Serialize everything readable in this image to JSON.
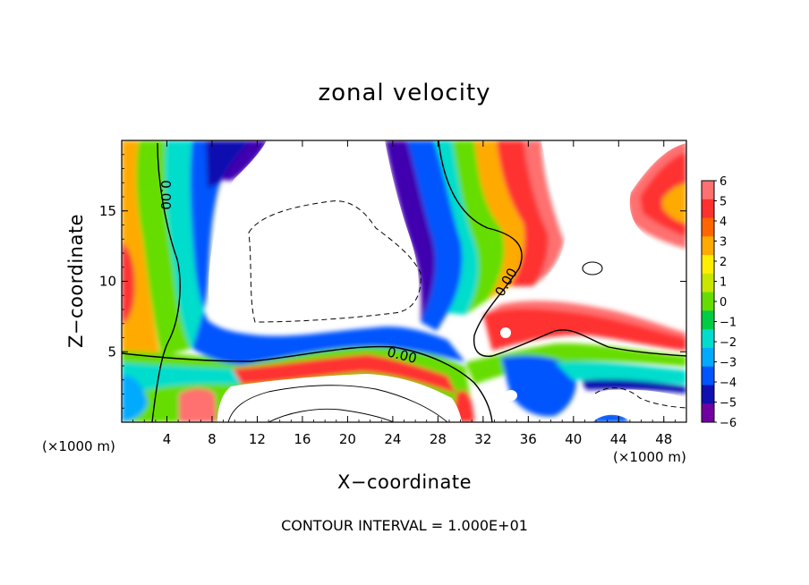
{
  "chart_data": {
    "type": "heatmap",
    "title": "zonal velocity",
    "xlabel": "X−coordinate",
    "ylabel": "Z−coordinate",
    "x_unit": "(×1000 m)",
    "y_unit": "(×1000 m)",
    "xlim": [
      0,
      50
    ],
    "ylim": [
      0,
      20
    ],
    "x_ticks": [
      "4",
      "8",
      "12",
      "16",
      "20",
      "24",
      "28",
      "32",
      "36",
      "40",
      "44",
      "48"
    ],
    "y_ticks": [
      "5",
      "10",
      "15"
    ],
    "colorbar": {
      "labels": [
        "6",
        "5",
        "4",
        "3",
        "2",
        "1",
        "0",
        "−1",
        "−2",
        "−3",
        "−4",
        "−5",
        "−6"
      ],
      "values": [
        6,
        5,
        4,
        3,
        2,
        1,
        0,
        -1,
        -2,
        -3,
        -4,
        -5,
        -6
      ],
      "colors": [
        "#ff7070",
        "#ff3030",
        "#ff6600",
        "#ffaa00",
        "#ffee00",
        "#c8e600",
        "#66dd00",
        "#00cc44",
        "#00ddcc",
        "#00aaff",
        "#0055ff",
        "#1010b0",
        "#7000a0"
      ]
    },
    "contour_label": "0.00",
    "contour_interval_text": "CONTOUR INTERVAL = 1.000E+01"
  }
}
